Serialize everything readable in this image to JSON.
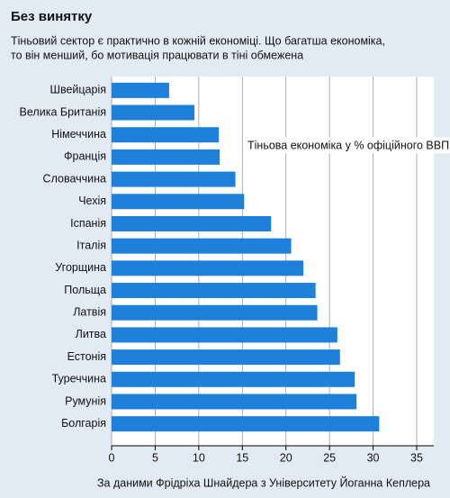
{
  "chart_data": {
    "type": "bar",
    "orientation": "horizontal",
    "title": "Без винятку",
    "subtitle": [
      "Тіньовий сектор є практично в кожній економіці. Що багатша економіка,",
      "то він менший, бо мотивація працювати в тіні обмежена"
    ],
    "annotation": "Тіньова економіка у %  офіційного ВВП",
    "source": "За даними Фрідріха Шнайдера з Університету Йоганна Кеплера",
    "categories": [
      "Швейцарія",
      "Велика Британія",
      "Німеччина",
      "Франція",
      "Словаччина",
      "Чехія",
      "Іспанія",
      "Італія",
      "Угорщина",
      "Польща",
      "Латвія",
      "Литва",
      "Естонія",
      "Туреччина",
      "Румунія",
      "Болгарія"
    ],
    "values": [
      6.6,
      9.5,
      12.3,
      12.4,
      14.2,
      15.2,
      18.3,
      20.6,
      22.0,
      23.4,
      23.6,
      25.9,
      26.2,
      27.9,
      28.1,
      30.7
    ],
    "color": "#1f80dc",
    "xlim": [
      0,
      35
    ],
    "xticks": [
      0,
      5,
      10,
      15,
      20,
      25,
      30,
      35
    ],
    "grid": true
  }
}
